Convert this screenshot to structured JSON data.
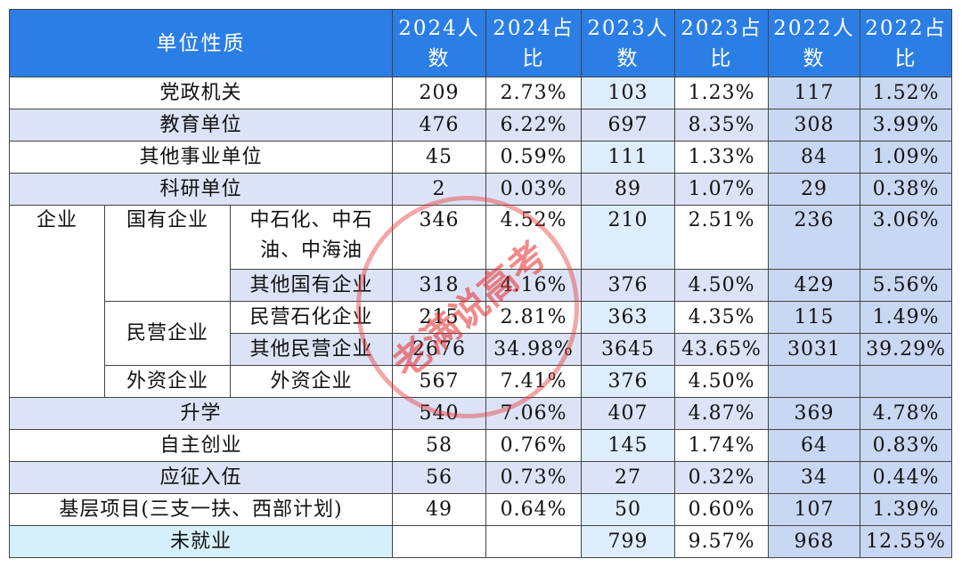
{
  "header": [
    "单位性质",
    "2024人数",
    "2024占比",
    "2023人数",
    "2023占比",
    "2022人数",
    "2022占比"
  ],
  "rows_before": [
    {
      "label": "党政机关",
      "values": [
        "209",
        "2.73%",
        "103",
        "1.23%",
        "117",
        "1.52%"
      ]
    },
    {
      "label": "教育单位",
      "values": [
        "476",
        "6.22%",
        "697",
        "8.35%",
        "308",
        "3.99%"
      ]
    },
    {
      "label": "其他事业单位",
      "values": [
        "45",
        "0.59%",
        "111",
        "1.33%",
        "84",
        "1.09%"
      ]
    },
    {
      "label": "科研单位",
      "values": [
        "2",
        "0.03%",
        "89",
        "1.07%",
        "29",
        "0.38%"
      ]
    }
  ],
  "enterprise": {
    "label": "企业",
    "groups": [
      {
        "label": "国有企业",
        "items": [
          {
            "label": "中石化、中石油、中海油",
            "values": [
              "346",
              "4.52%",
              "210",
              "2.51%",
              "236",
              "3.06%"
            ]
          },
          {
            "label": "其他国有企业",
            "values": [
              "318",
              "4.16%",
              "376",
              "4.50%",
              "429",
              "5.56%"
            ]
          }
        ]
      },
      {
        "label": "民营企业",
        "items": [
          {
            "label": "民营石化企业",
            "values": [
              "215",
              "2.81%",
              "363",
              "4.35%",
              "115",
              "1.49%"
            ]
          },
          {
            "label": "其他民营企业",
            "values": [
              "2676",
              "34.98%",
              "3645",
              "43.65%",
              "3031",
              "39.29%"
            ]
          }
        ]
      },
      {
        "label": "外资企业",
        "items": [
          {
            "label": "外资企业",
            "values": [
              "567",
              "7.41%",
              "376",
              "4.50%",
              null,
              null
            ]
          }
        ]
      }
    ]
  },
  "rows_after": [
    {
      "label": "升学",
      "values": [
        "540",
        "7.06%",
        "407",
        "4.87%",
        "369",
        "4.78%"
      ]
    },
    {
      "label": "自主创业",
      "values": [
        "58",
        "0.76%",
        "145",
        "1.74%",
        "64",
        "0.83%"
      ]
    },
    {
      "label": "应征入伍",
      "values": [
        "56",
        "0.73%",
        "27",
        "0.32%",
        "34",
        "0.44%"
      ]
    },
    {
      "label": "基层项目(三支一扶、西部计划)",
      "values": [
        "49",
        "0.64%",
        "50",
        "0.60%",
        "107",
        "1.39%"
      ]
    },
    {
      "label": "未就业",
      "values": [
        null,
        null,
        "799",
        "9.57%",
        "968",
        "12.55%"
      ]
    }
  ],
  "watermark": "老满说高考"
}
